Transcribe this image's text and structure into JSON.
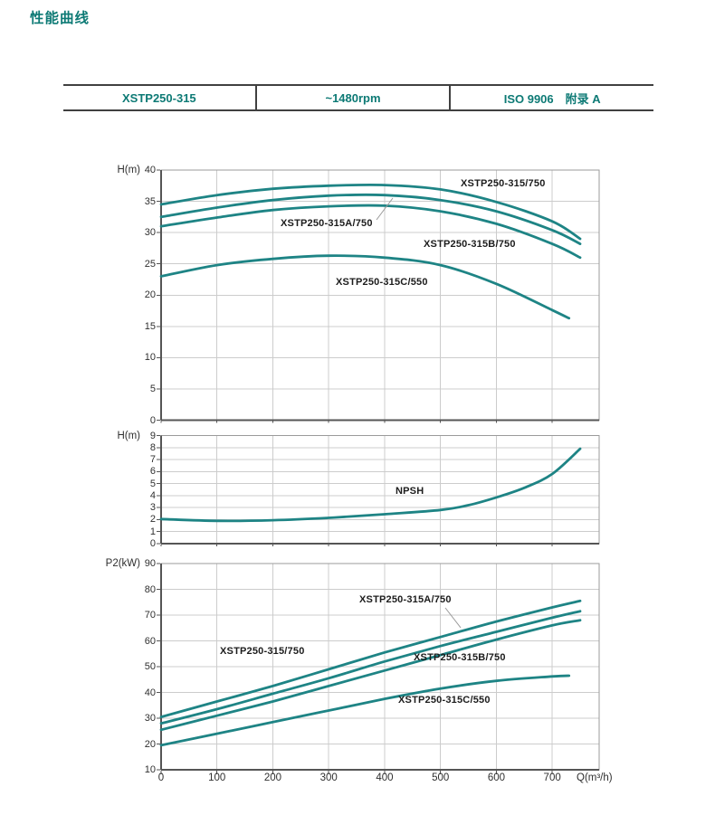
{
  "title": "性能曲线",
  "header": {
    "model": "XSTP250-315",
    "speed": "~1480rpm",
    "standard": "ISO 9906　附录 A"
  },
  "colors": {
    "accent_teal": "#0d7a75",
    "curve_teal": "#1e8485",
    "grid": "#cccccc",
    "box_border": "#9b9b9b",
    "axis_dark": "#555555",
    "table_border": "#404040",
    "leader": "#9a9a9a"
  },
  "chart_data": [
    {
      "id": "head",
      "type": "line",
      "title": "流量-扬程曲线",
      "ylabel": "H(m)",
      "xlabel": "",
      "ylim": [
        0,
        40
      ],
      "yticks": [
        0,
        5,
        10,
        15,
        20,
        25,
        30,
        35,
        40
      ],
      "xlim": [
        0,
        784
      ],
      "xticks": [
        0,
        100,
        200,
        300,
        400,
        500,
        600,
        700
      ],
      "grid": true,
      "show_xtick_labels": false,
      "series": [
        {
          "name": "XSTP250-315/750",
          "points": [
            [
              0,
              34.5
            ],
            [
              100,
              36.0
            ],
            [
              200,
              37.0
            ],
            [
              300,
              37.5
            ],
            [
              400,
              37.6
            ],
            [
              500,
              36.9
            ],
            [
              600,
              34.9
            ],
            [
              700,
              31.8
            ],
            [
              750,
              29.0
            ]
          ]
        },
        {
          "name": "XSTP250-315A/750",
          "points": [
            [
              0,
              32.5
            ],
            [
              100,
              34.0
            ],
            [
              200,
              35.2
            ],
            [
              300,
              35.9
            ],
            [
              400,
              36.0
            ],
            [
              500,
              35.2
            ],
            [
              600,
              33.4
            ],
            [
              700,
              30.4
            ],
            [
              750,
              28.2
            ]
          ]
        },
        {
          "name": "XSTP250-315B/750",
          "points": [
            [
              0,
              31.0
            ],
            [
              100,
              32.4
            ],
            [
              200,
              33.6
            ],
            [
              300,
              34.2
            ],
            [
              400,
              34.3
            ],
            [
              500,
              33.4
            ],
            [
              600,
              31.4
            ],
            [
              700,
              28.2
            ],
            [
              750,
              26.0
            ]
          ]
        },
        {
          "name": "XSTP250-315C/550",
          "points": [
            [
              0,
              23.0
            ],
            [
              100,
              24.8
            ],
            [
              200,
              25.8
            ],
            [
              300,
              26.3
            ],
            [
              400,
              26.0
            ],
            [
              500,
              24.8
            ],
            [
              600,
              21.8
            ],
            [
              700,
              17.6
            ],
            [
              730,
              16.3
            ]
          ]
        }
      ],
      "annotations": [
        {
          "text": "XSTP250-315/750",
          "x": 509,
          "y": 197
        },
        {
          "text": "XSTP250-315A/750",
          "x": 310,
          "y": 241,
          "leader": [
            416,
            243,
            434,
            219
          ]
        },
        {
          "text": "XSTP250-315B/750",
          "x": 468,
          "y": 264
        },
        {
          "text": "XSTP250-315C/550",
          "x": 371,
          "y": 306
        }
      ]
    },
    {
      "id": "npsh",
      "type": "line",
      "title": "汽蚀余量曲线",
      "ylabel": "H(m)",
      "xlabel": "",
      "ylim": [
        0,
        9
      ],
      "yticks": [
        0,
        1,
        2,
        3,
        4,
        5,
        6,
        7,
        8,
        9
      ],
      "xlim": [
        0,
        784
      ],
      "xticks": [
        0,
        100,
        200,
        300,
        400,
        500,
        600,
        700
      ],
      "grid": true,
      "show_xtick_labels": false,
      "series": [
        {
          "name": "NPSH",
          "points": [
            [
              0,
              2.05
            ],
            [
              100,
              1.9
            ],
            [
              200,
              1.95
            ],
            [
              300,
              2.15
            ],
            [
              400,
              2.45
            ],
            [
              500,
              2.8
            ],
            [
              550,
              3.2
            ],
            [
              600,
              3.85
            ],
            [
              650,
              4.65
            ],
            [
              700,
              5.8
            ],
            [
              750,
              7.9
            ]
          ]
        }
      ],
      "annotations": [
        {
          "text": "NPSH",
          "x": 437,
          "y": 537
        }
      ]
    },
    {
      "id": "power",
      "type": "line",
      "title": "流量-功率曲线",
      "ylabel": "P2(kW)",
      "xlabel": "Q(m³/h)",
      "ylim": [
        10,
        90
      ],
      "yticks": [
        10,
        20,
        30,
        40,
        50,
        60,
        70,
        80,
        90
      ],
      "xlim": [
        0,
        784
      ],
      "xticks": [
        0,
        100,
        200,
        300,
        400,
        500,
        600,
        700
      ],
      "grid": true,
      "show_xtick_labels": true,
      "series": [
        {
          "name": "XSTP250-315/750",
          "points": [
            [
              0,
              30.5
            ],
            [
              100,
              36.5
            ],
            [
              200,
              42.5
            ],
            [
              300,
              49.0
            ],
            [
              400,
              55.5
            ],
            [
              500,
              61.5
            ],
            [
              600,
              67.5
            ],
            [
              700,
              73.0
            ],
            [
              750,
              75.5
            ]
          ]
        },
        {
          "name": "XSTP250-315A/750",
          "points": [
            [
              0,
              28.0
            ],
            [
              100,
              33.5
            ],
            [
              200,
              39.5
            ],
            [
              300,
              45.5
            ],
            [
              400,
              52.0
            ],
            [
              500,
              58.0
            ],
            [
              600,
              63.5
            ],
            [
              700,
              69.0
            ],
            [
              750,
              71.5
            ]
          ]
        },
        {
          "name": "XSTP250-315B/750",
          "points": [
            [
              0,
              25.5
            ],
            [
              100,
              31.0
            ],
            [
              200,
              36.5
            ],
            [
              300,
              42.5
            ],
            [
              400,
              48.5
            ],
            [
              500,
              54.5
            ],
            [
              600,
              60.5
            ],
            [
              700,
              66.0
            ],
            [
              750,
              68.0
            ]
          ]
        },
        {
          "name": "XSTP250-315C/550",
          "points": [
            [
              0,
              19.5
            ],
            [
              100,
              24.0
            ],
            [
              200,
              28.5
            ],
            [
              300,
              33.0
            ],
            [
              400,
              37.5
            ],
            [
              500,
              41.5
            ],
            [
              600,
              44.5
            ],
            [
              700,
              46.2
            ],
            [
              730,
              46.5
            ]
          ]
        }
      ],
      "annotations": [
        {
          "text": "XSTP250-315/750",
          "x": 243,
          "y": 714
        },
        {
          "text": "XSTP250-315A/750",
          "x": 397,
          "y": 657,
          "leader": [
            492,
            672,
            509,
            694
          ]
        },
        {
          "text": "XSTP250-315B/750",
          "x": 457,
          "y": 721
        },
        {
          "text": "XSTP250-315C/550",
          "x": 440,
          "y": 768
        }
      ]
    }
  ]
}
